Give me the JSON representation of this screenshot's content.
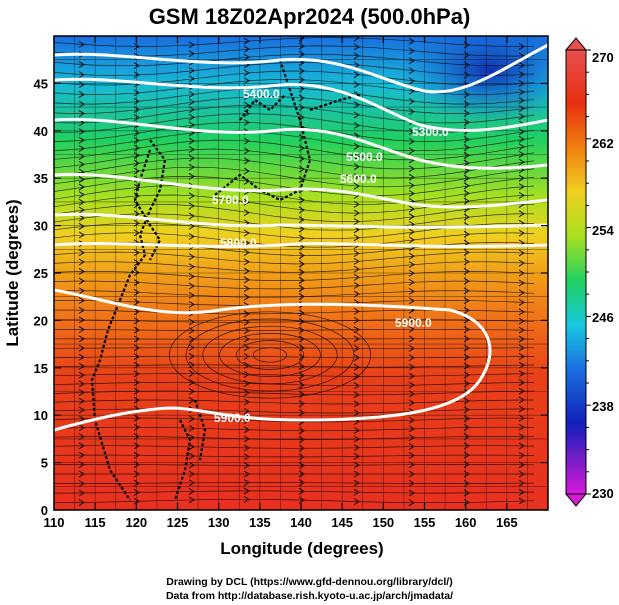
{
  "title": "GSM 18Z02Apr2024 (500.0hPa)",
  "axes": {
    "xlabel": "Longitude (degrees)",
    "ylabel": "Latitude (degrees)",
    "xticks": [
      110,
      115,
      120,
      125,
      130,
      135,
      140,
      145,
      150,
      155,
      160,
      165
    ],
    "yticks": [
      0,
      5,
      10,
      15,
      20,
      25,
      30,
      35,
      40,
      45
    ],
    "xlim": [
      110,
      170
    ],
    "ylim": [
      0,
      50
    ]
  },
  "colorbar": {
    "labels": [
      "270",
      "262",
      "254",
      "246",
      "238",
      "230"
    ],
    "range": [
      230,
      270
    ],
    "colors": [
      "#d81ad8",
      "#1020b8",
      "#1a6ee0",
      "#18c8e0",
      "#20d060",
      "#a8e020",
      "#f0d020",
      "#f08010",
      "#e83010",
      "#e85050"
    ]
  },
  "contours": {
    "labels": [
      "5400.0",
      "5300.0",
      "5500.0",
      "5600.0",
      "5700.0",
      "5800.0",
      "5900.0",
      "5900.0"
    ]
  },
  "footer": {
    "line1": "Drawing by DCL (https://www.gfd-dennou.org/library/dcl/)",
    "line2": "Data from http://database.rish.kyoto-u.ac.jp/arch/jmadata/"
  },
  "chart_data": {
    "type": "heatmap",
    "title": "GSM 18Z02Apr2024 (500.0hPa)",
    "xlabel": "Longitude (degrees)",
    "ylabel": "Latitude (degrees)",
    "xlim": [
      110,
      170
    ],
    "ylim": [
      0,
      50
    ],
    "color_range": [
      230,
      270
    ],
    "contour_levels": [
      5300,
      5400,
      5500,
      5600,
      5700,
      5800,
      5900
    ],
    "shading_by_latitude": [
      {
        "lat": 0,
        "value": 268
      },
      {
        "lat": 10,
        "value": 267
      },
      {
        "lat": 20,
        "value": 266
      },
      {
        "lat": 25,
        "value": 264
      },
      {
        "lat": 30,
        "value": 261
      },
      {
        "lat": 35,
        "value": 257
      },
      {
        "lat": 40,
        "value": 252
      },
      {
        "lat": 45,
        "value": 247
      },
      {
        "lat": 50,
        "value": 243
      }
    ],
    "grid": true
  }
}
